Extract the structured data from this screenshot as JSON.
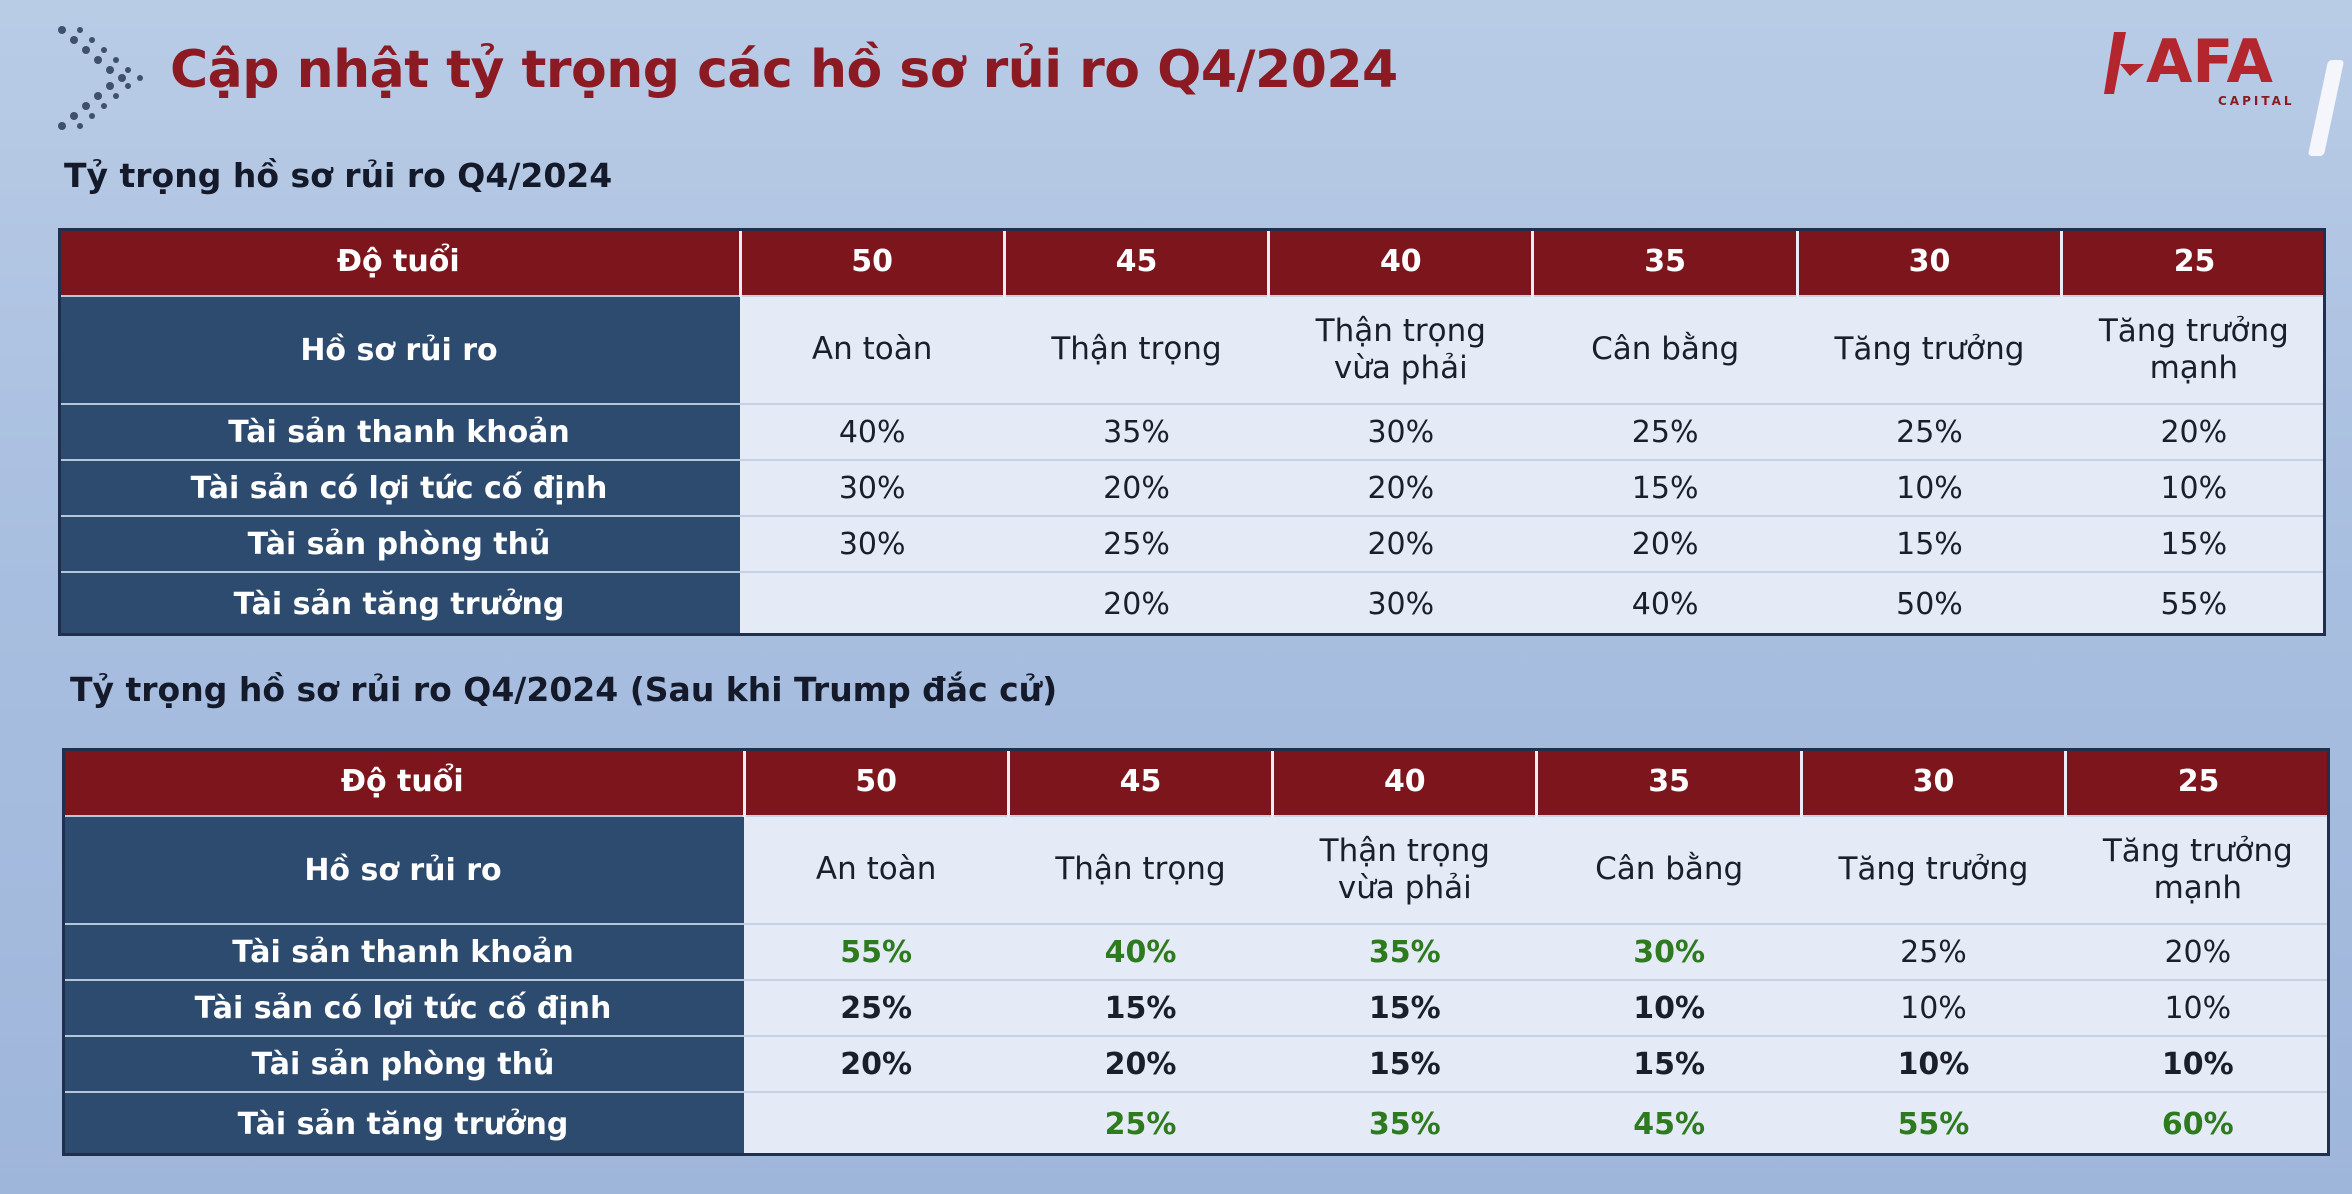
{
  "header": {
    "title": "Cập nhật tỷ trọng các hồ sơ rủi ro Q4/2024",
    "logo_text": "AFA",
    "logo_sub": "CAPITAL",
    "chevron_icon": "chevron-right-icon",
    "brand_color": "#8b1a22"
  },
  "table1": {
    "title": "Tỷ trọng hồ sơ rủi ro Q4/2024",
    "age_label": "Độ tuổi",
    "ages": [
      "50",
      "45",
      "40",
      "35",
      "30",
      "25"
    ],
    "profile_label": "Hồ sơ rủi ro",
    "profiles": [
      [
        "An toàn"
      ],
      [
        "Thận trọng"
      ],
      [
        "Thận trọng",
        "vừa phải"
      ],
      [
        "Cân bằng"
      ],
      [
        "Tăng trưởng"
      ],
      [
        "Tăng trưởng",
        "mạnh"
      ]
    ],
    "rows": [
      {
        "label": "Tài sản thanh khoản",
        "values": [
          "40%",
          "35%",
          "30%",
          "25%",
          "25%",
          "20%"
        ]
      },
      {
        "label": "Tài sản có lợi tức cố định",
        "values": [
          "30%",
          "20%",
          "20%",
          "15%",
          "10%",
          "10%"
        ]
      },
      {
        "label": "Tài sản phòng thủ",
        "values": [
          "30%",
          "25%",
          "20%",
          "20%",
          "15%",
          "15%"
        ]
      },
      {
        "label": "Tài sản tăng trưởng",
        "values": [
          "",
          "20%",
          "30%",
          "40%",
          "50%",
          "55%"
        ]
      }
    ]
  },
  "table2": {
    "title": "Tỷ trọng hồ sơ rủi ro Q4/2024 (Sau khi Trump đắc cử)",
    "age_label": "Độ tuổi",
    "ages": [
      "50",
      "45",
      "40",
      "35",
      "30",
      "25"
    ],
    "profile_label": "Hồ sơ rủi ro",
    "profiles": [
      [
        "An toàn"
      ],
      [
        "Thận trọng"
      ],
      [
        "Thận trọng",
        "vừa phải"
      ],
      [
        "Cân bằng"
      ],
      [
        "Tăng trưởng"
      ],
      [
        "Tăng trưởng",
        "mạnh"
      ]
    ],
    "rows": [
      {
        "label": "Tài sản thanh khoản",
        "values": [
          "55%",
          "40%",
          "35%",
          "30%",
          "25%",
          "20%"
        ],
        "styles": [
          "green",
          "green",
          "green",
          "green",
          "plain",
          "plain"
        ]
      },
      {
        "label": "Tài sản có lợi tức cố định",
        "values": [
          "25%",
          "15%",
          "15%",
          "10%",
          "10%",
          "10%"
        ],
        "styles": [
          "bold",
          "bold",
          "bold",
          "bold",
          "plain",
          "plain"
        ]
      },
      {
        "label": "Tài sản phòng thủ",
        "values": [
          "20%",
          "20%",
          "15%",
          "15%",
          "10%",
          "10%"
        ],
        "styles": [
          "bold",
          "bold",
          "bold",
          "bold",
          "bold",
          "bold"
        ]
      },
      {
        "label": "Tài sản tăng trưởng",
        "values": [
          "",
          "25%",
          "35%",
          "45%",
          "55%",
          "60%"
        ],
        "styles": [
          "plain",
          "green",
          "green",
          "green",
          "green",
          "green"
        ]
      }
    ],
    "highlight_color": "#2e7a1f"
  }
}
